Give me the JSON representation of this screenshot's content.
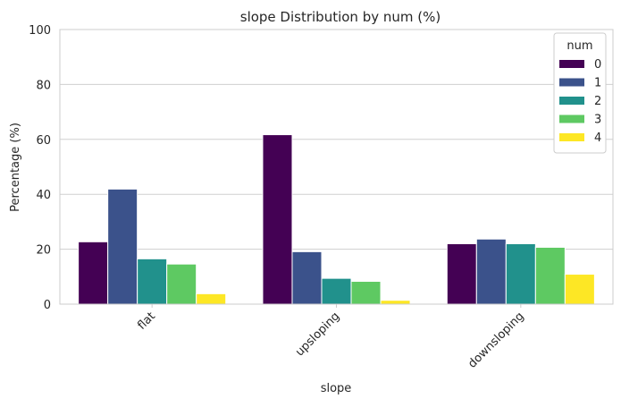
{
  "chart_data": {
    "type": "bar",
    "title": "slope Distribution by num (%)",
    "xlabel": "slope",
    "ylabel": "Percentage (%)",
    "categories": [
      "flat",
      "upsloping",
      "downsloping"
    ],
    "ylim": [
      0,
      100
    ],
    "yticks": [
      "0",
      "20",
      "40",
      "60",
      "80",
      "100"
    ],
    "grid": true,
    "legend": {
      "title": "num",
      "placement": "top-right"
    },
    "series": [
      {
        "name": "0",
        "color": "#440154",
        "values": [
          22.7,
          61.7,
          22.0
        ]
      },
      {
        "name": "1",
        "color": "#3b528b",
        "values": [
          41.9,
          19.1,
          23.7
        ]
      },
      {
        "name": "2",
        "color": "#21918c",
        "values": [
          16.5,
          9.4,
          22.0
        ]
      },
      {
        "name": "3",
        "color": "#5ec962",
        "values": [
          14.6,
          8.3,
          20.7
        ]
      },
      {
        "name": "4",
        "color": "#fde725",
        "values": [
          3.8,
          1.4,
          10.9
        ]
      }
    ]
  }
}
